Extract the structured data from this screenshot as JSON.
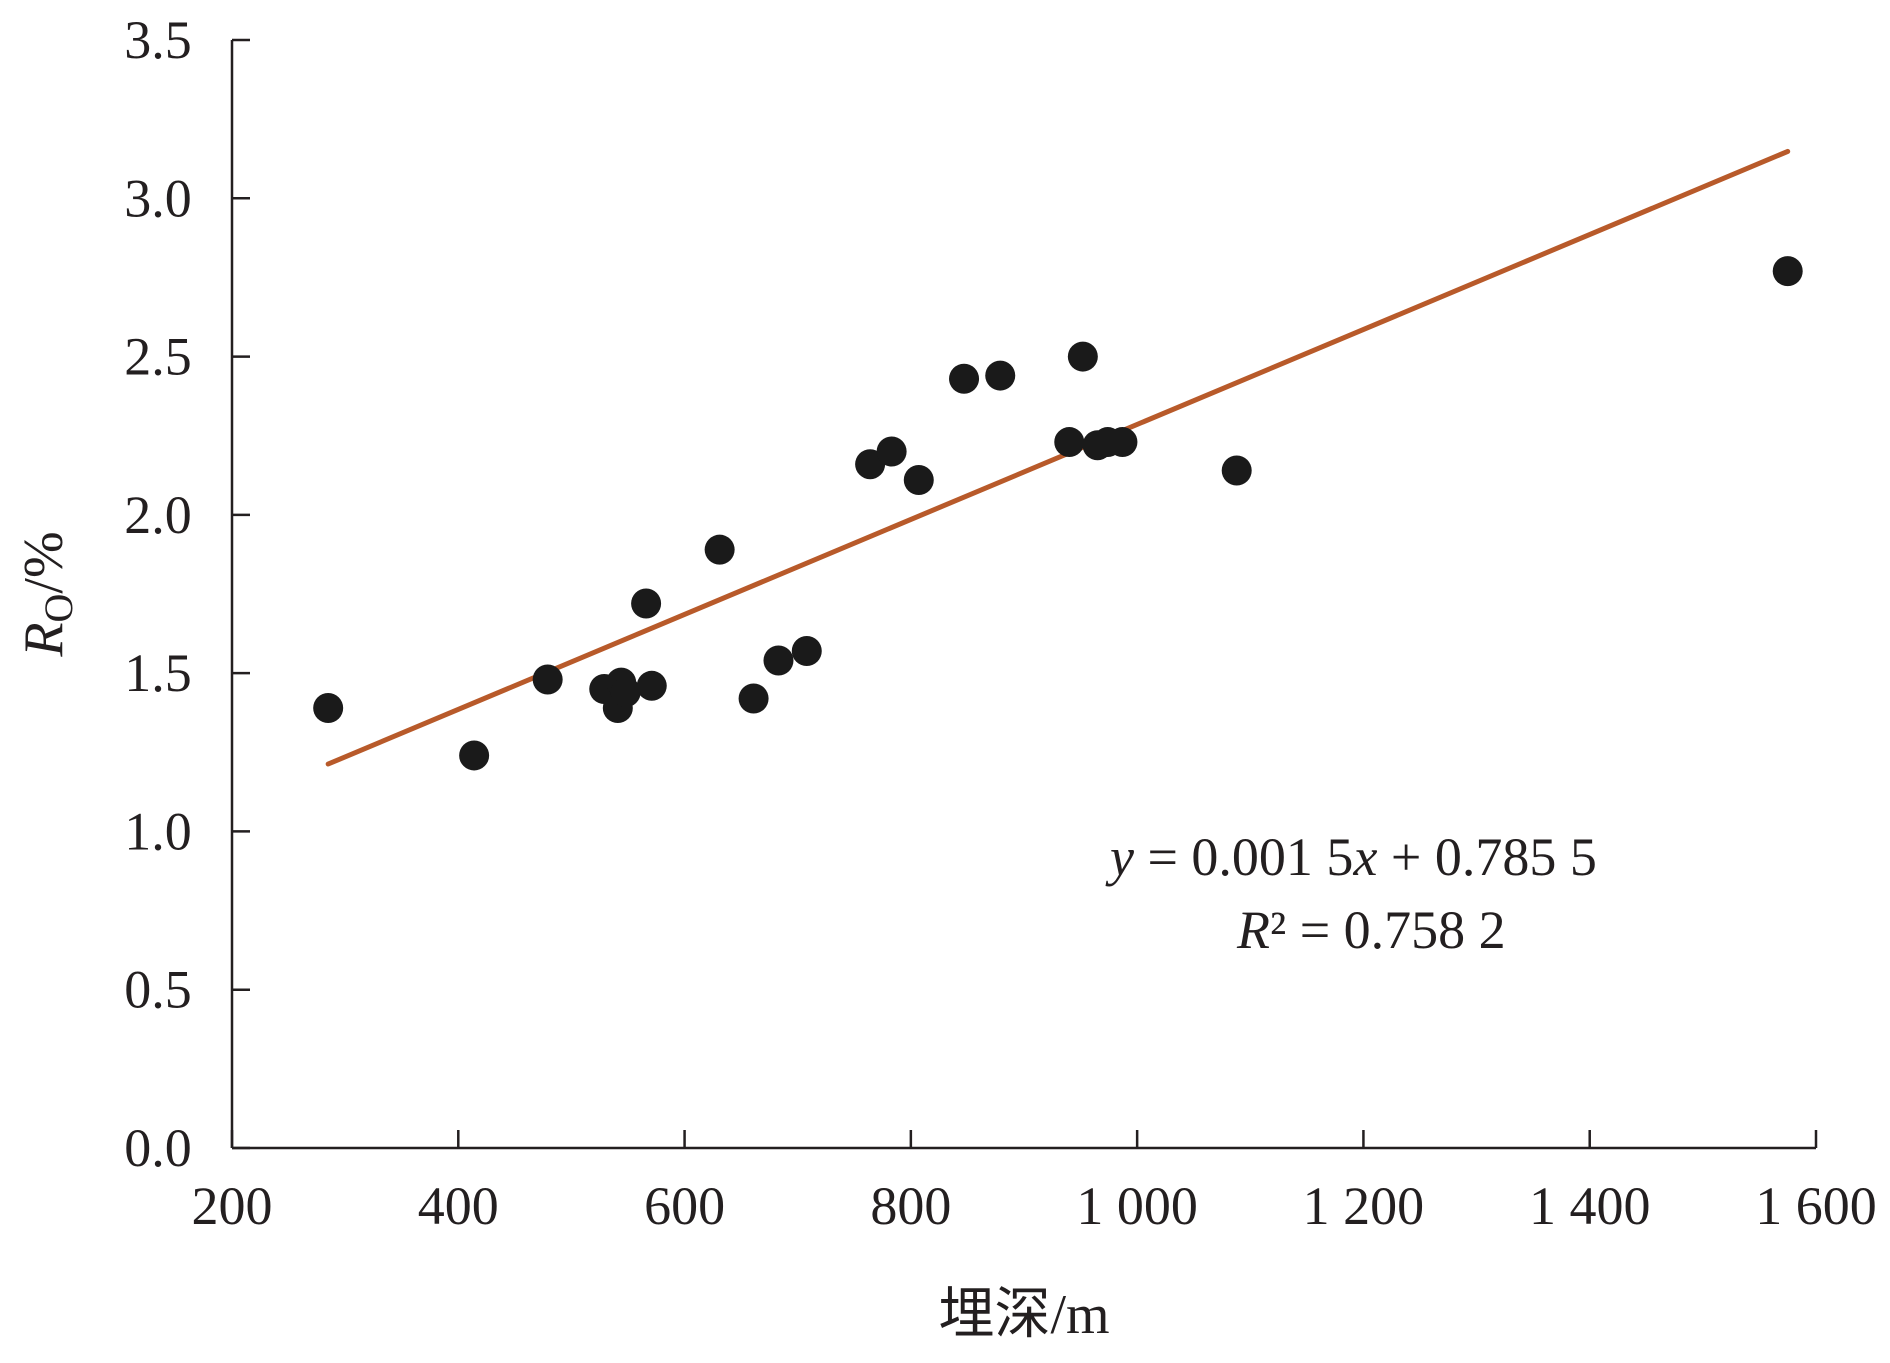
{
  "chart_data": {
    "type": "scatter",
    "title": "",
    "xlabel": "埋深/m",
    "ylabel": {
      "var": "R",
      "sub": "O",
      "suffix": "/%"
    },
    "xlim": [
      200,
      1600
    ],
    "ylim": [
      0,
      3.5
    ],
    "x_ticks": [
      {
        "value": 200,
        "label": "200"
      },
      {
        "value": 400,
        "label": "400"
      },
      {
        "value": 600,
        "label": "600"
      },
      {
        "value": 800,
        "label": "800"
      },
      {
        "value": 1000,
        "label": "1 000"
      },
      {
        "value": 1200,
        "label": "1 200"
      },
      {
        "value": 1400,
        "label": "1 400"
      },
      {
        "value": 1600,
        "label": "1 600"
      }
    ],
    "y_ticks": [
      {
        "value": 0.0,
        "label": "0.0"
      },
      {
        "value": 0.5,
        "label": "0.5"
      },
      {
        "value": 1.0,
        "label": "1.0"
      },
      {
        "value": 1.5,
        "label": "1.5"
      },
      {
        "value": 2.0,
        "label": "2.0"
      },
      {
        "value": 2.5,
        "label": "2.5"
      },
      {
        "value": 3.0,
        "label": "3.0"
      },
      {
        "value": 3.5,
        "label": "3.5"
      }
    ],
    "grid": false,
    "points": [
      {
        "x": 285,
        "y": 1.39
      },
      {
        "x": 414,
        "y": 1.24
      },
      {
        "x": 479,
        "y": 1.48
      },
      {
        "x": 529,
        "y": 1.45
      },
      {
        "x": 541,
        "y": 1.39
      },
      {
        "x": 544,
        "y": 1.47
      },
      {
        "x": 548,
        "y": 1.44
      },
      {
        "x": 566,
        "y": 1.72
      },
      {
        "x": 571,
        "y": 1.46
      },
      {
        "x": 631,
        "y": 1.89
      },
      {
        "x": 661,
        "y": 1.42
      },
      {
        "x": 683,
        "y": 1.54
      },
      {
        "x": 708,
        "y": 1.57
      },
      {
        "x": 764,
        "y": 2.16
      },
      {
        "x": 783,
        "y": 2.2
      },
      {
        "x": 807,
        "y": 2.11
      },
      {
        "x": 847,
        "y": 2.43
      },
      {
        "x": 879,
        "y": 2.44
      },
      {
        "x": 940,
        "y": 2.23
      },
      {
        "x": 952,
        "y": 2.5
      },
      {
        "x": 965,
        "y": 2.22
      },
      {
        "x": 974,
        "y": 2.23
      },
      {
        "x": 987,
        "y": 2.23
      },
      {
        "x": 1088,
        "y": 2.14
      },
      {
        "x": 1575,
        "y": 2.77
      }
    ],
    "trendline": {
      "slope": 0.0015,
      "intercept": 0.7855,
      "x_range": [
        285,
        1575
      ],
      "color": "#b85a2a"
    },
    "marker_color": "#1a1a1a",
    "annotation": {
      "equation": {
        "y": "y",
        "rest": " = 0.001 5",
        "x": "x",
        "tail": " + 0.785 5"
      },
      "r2": {
        "r": "R",
        "rest": "² = 0.758 2"
      }
    }
  }
}
